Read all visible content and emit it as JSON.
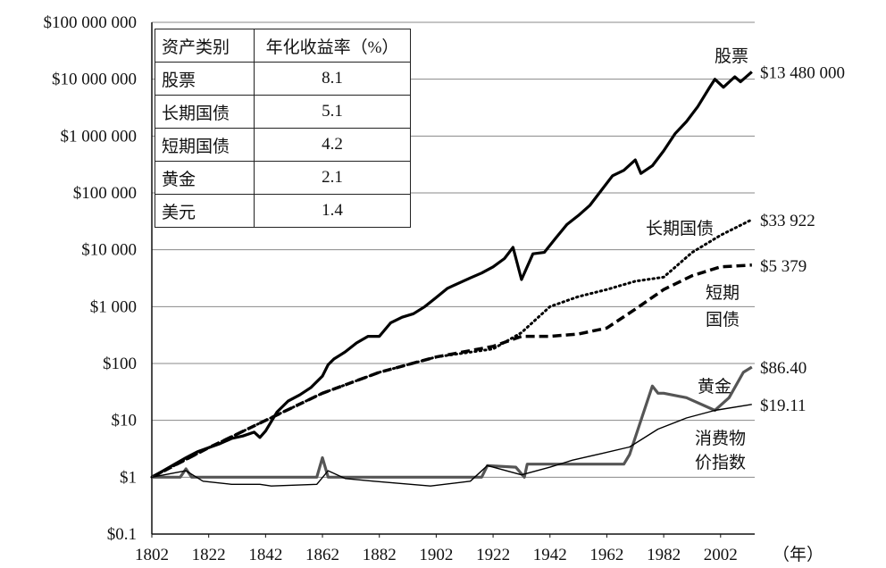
{
  "chart_data": {
    "type": "line",
    "yscale": "log",
    "ylim": [
      0.1,
      100000000
    ],
    "xlim": [
      1802,
      2014
    ],
    "x_ticks": [
      1802,
      1822,
      1842,
      1862,
      1882,
      1902,
      1922,
      1942,
      1962,
      1982,
      2002
    ],
    "x_unit": "（年）",
    "y_ticks": [
      {
        "value": 100000000,
        "label": "$100 000 000"
      },
      {
        "value": 10000000,
        "label": "$10 000 000"
      },
      {
        "value": 1000000,
        "label": "$1 000 000"
      },
      {
        "value": 100000,
        "label": "$100 000"
      },
      {
        "value": 10000,
        "label": "$10 000"
      },
      {
        "value": 1000,
        "label": "$1 000"
      },
      {
        "value": 100,
        "label": "$100"
      },
      {
        "value": 10,
        "label": "$10"
      },
      {
        "value": 1,
        "label": "$1"
      },
      {
        "value": 0.1,
        "label": "$0.1"
      }
    ],
    "grid": true,
    "series": [
      {
        "name": "股票",
        "style": "solid-thick",
        "color": "#000000",
        "end_label": "$13 480 000",
        "x": [
          1802,
          1806,
          1810,
          1814,
          1818,
          1822,
          1826,
          1830,
          1834,
          1838,
          1840,
          1842,
          1846,
          1850,
          1854,
          1858,
          1862,
          1864,
          1866,
          1870,
          1874,
          1878,
          1882,
          1886,
          1890,
          1894,
          1898,
          1902,
          1906,
          1910,
          1914,
          1918,
          1922,
          1926,
          1929,
          1932,
          1936,
          1940,
          1944,
          1948,
          1952,
          1956,
          1960,
          1964,
          1968,
          1972,
          1974,
          1978,
          1982,
          1986,
          1990,
          1994,
          1998,
          2000,
          2003,
          2007,
          2009,
          2013
        ],
        "y": [
          1,
          1.3,
          1.7,
          2.2,
          2.8,
          3.3,
          3.9,
          4.8,
          5.3,
          6.2,
          5.0,
          6.5,
          14,
          22,
          28,
          38,
          60,
          95,
          120,
          160,
          230,
          300,
          300,
          520,
          650,
          750,
          1000,
          1450,
          2100,
          2600,
          3200,
          3900,
          5000,
          7000,
          11000,
          3000,
          8500,
          9000,
          16000,
          28000,
          40000,
          60000,
          110000,
          200000,
          250000,
          380000,
          220000,
          300000,
          550000,
          1100000,
          1800000,
          3300000,
          7000000,
          10000000,
          7200000,
          11000000,
          9000000,
          13480000
        ]
      },
      {
        "name": "长期国债",
        "style": "dotted",
        "color": "#000000",
        "end_label": "$33 922",
        "x": [
          1802,
          1822,
          1842,
          1862,
          1882,
          1902,
          1922,
          1932,
          1942,
          1952,
          1962,
          1972,
          1982,
          1992,
          2002,
          2013
        ],
        "y": [
          1,
          3.3,
          10,
          30,
          70,
          130,
          180,
          350,
          1000,
          1500,
          2000,
          2800,
          3300,
          9000,
          18000,
          33922
        ]
      },
      {
        "name": "短期国债",
        "style": "dashed-thick",
        "color": "#000000",
        "end_label": "$5 379",
        "x": [
          1802,
          1822,
          1842,
          1862,
          1882,
          1902,
          1922,
          1932,
          1942,
          1952,
          1962,
          1972,
          1982,
          1992,
          2002,
          2013
        ],
        "y": [
          1,
          3.3,
          10,
          30,
          70,
          130,
          200,
          300,
          300,
          330,
          420,
          900,
          2000,
          3500,
          5000,
          5379
        ]
      },
      {
        "name": "黄金",
        "style": "solid-gray",
        "color": "#555555",
        "end_label": "$86.40",
        "x": [
          1802,
          1812,
          1814,
          1816,
          1860,
          1862,
          1864,
          1870,
          1918,
          1920,
          1930,
          1933,
          1934,
          1968,
          1970,
          1974,
          1976,
          1978,
          1980,
          1982,
          1990,
          2000,
          2005,
          2010,
          2013
        ],
        "y": [
          1,
          1,
          1.4,
          1,
          1,
          2.2,
          1,
          1,
          1,
          1.6,
          1.5,
          1,
          1.7,
          1.7,
          2.5,
          10,
          20,
          40,
          30,
          30,
          25,
          15,
          25,
          70,
          86.4
        ]
      },
      {
        "name": "消费物价指数",
        "style": "solid-thin",
        "color": "#000000",
        "end_label": "$19.11",
        "x": [
          1802,
          1814,
          1820,
          1830,
          1840,
          1844,
          1860,
          1864,
          1870,
          1880,
          1900,
          1914,
          1920,
          1932,
          1942,
          1950,
          1960,
          1970,
          1980,
          1990,
          2000,
          2013
        ],
        "y": [
          1,
          1.3,
          0.85,
          0.75,
          0.75,
          0.7,
          0.75,
          1.3,
          0.95,
          0.85,
          0.7,
          0.85,
          1.6,
          1.1,
          1.5,
          2.0,
          2.6,
          3.4,
          7,
          11,
          15,
          19.11
        ]
      }
    ],
    "legend": {
      "position": "top-left",
      "headers": [
        "资产类别",
        "年化收益率（%）"
      ],
      "rows": [
        {
          "asset": "股票",
          "rate": "8.1"
        },
        {
          "asset": "长期国债",
          "rate": "5.1"
        },
        {
          "asset": "短期国债",
          "rate": "4.2"
        },
        {
          "asset": "黄金",
          "rate": "2.1"
        },
        {
          "asset": "美元",
          "rate": "1.4"
        }
      ]
    },
    "annotations": {
      "stocks": "股票",
      "long_bonds": "长期国债",
      "short_bills_1": "短期",
      "short_bills_2": "国债",
      "gold": "黄金",
      "cpi_1": "消费物",
      "cpi_2": "价指数"
    }
  }
}
